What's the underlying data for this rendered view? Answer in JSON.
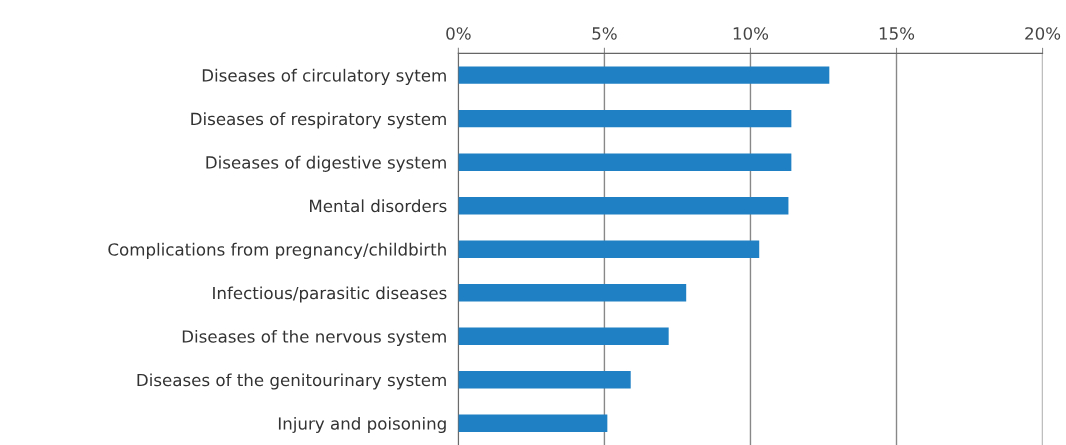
{
  "chart_data": {
    "type": "bar",
    "orientation": "horizontal",
    "categories": [
      "Diseases of circulatory sytem",
      "Diseases of respiratory system",
      "Diseases of digestive system",
      "Mental disorders",
      "Complications from pregnancy/childbirth",
      "Infectious/parasitic diseases",
      "Diseases of the nervous system",
      "Diseases of the genitourinary system",
      "Injury and poisoning"
    ],
    "values": [
      12.7,
      11.4,
      11.4,
      11.3,
      10.3,
      7.8,
      7.2,
      5.9,
      5.1
    ],
    "color": "#1f80c4",
    "xlim": [
      0,
      20
    ],
    "xticks": [
      {
        "value": 0,
        "label": "0%"
      },
      {
        "value": 5,
        "label": "5%"
      },
      {
        "value": 10,
        "label": "10%"
      },
      {
        "value": 15,
        "label": "15%"
      },
      {
        "value": 20,
        "label": "20%"
      }
    ],
    "grid": "x"
  }
}
